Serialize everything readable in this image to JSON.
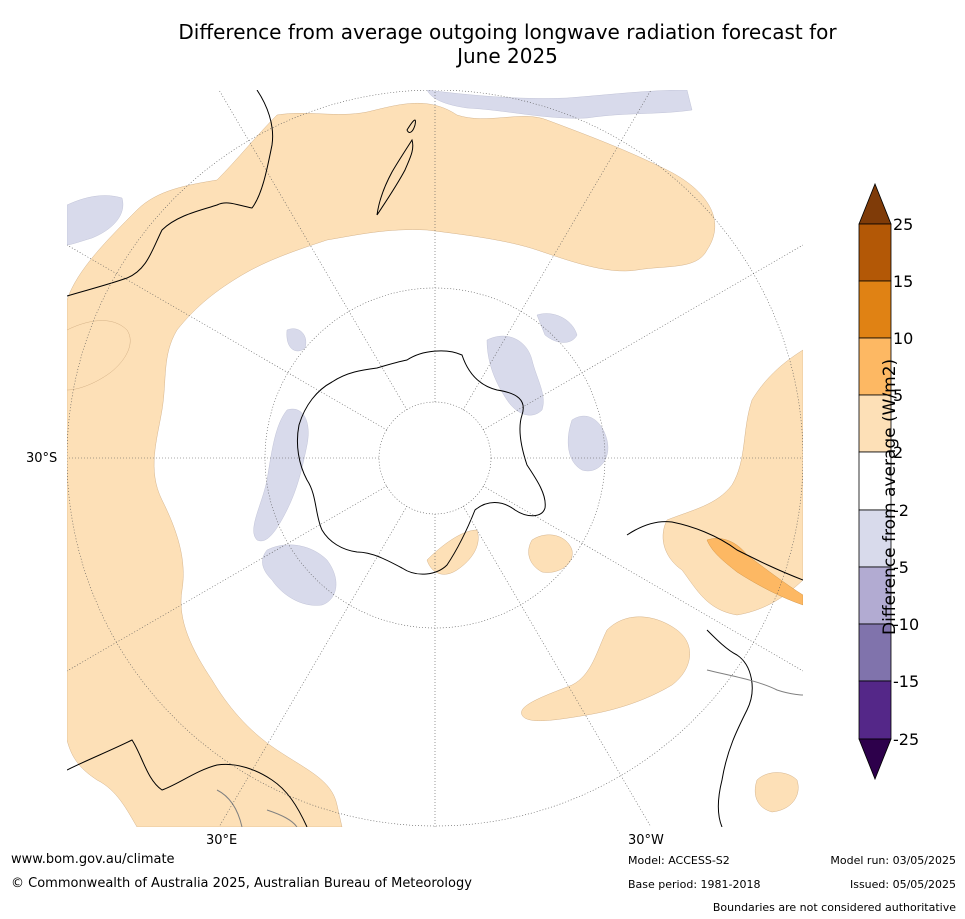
{
  "title_line1": "Difference from average outgoing longwave radiation forecast for",
  "title_line2": "June 2025",
  "map": {
    "projection": "south-polar-stereographic",
    "lat_label": "30°S",
    "lon_labels": [
      "30°E",
      "30°W"
    ],
    "colors": {
      "ocean_neutral": "#ffffff",
      "pos_2_5": "#fde0b7",
      "pos_5_10": "#fdb863",
      "pos_10_15": "#e08214",
      "pos_15_25": "#b35806",
      "pos_gt25": "#7f3b08",
      "neg_2_5": "#d8daeb",
      "neg_5_10": "#b2abd2",
      "neg_10_15": "#8073ac",
      "neg_15_25": "#542788",
      "neg_lt25": "#2d004b",
      "coast": "#000000",
      "boundary": "#808080",
      "grid": "#555555"
    }
  },
  "colorbar": {
    "title": "Difference from average (W/m2)",
    "ticks": [
      "25",
      "15",
      "10",
      "5",
      "2",
      "-2",
      "-5",
      "-10",
      "-15",
      "-25"
    ]
  },
  "footer": {
    "website": "www.bom.gov.au/climate",
    "copyright": "© Commonwealth of Australia 2025, Australian Bureau of Meteorology",
    "model": "Model: ACCESS-S2",
    "base_period": "Base period: 1981-2018",
    "model_run": "Model run: 03/05/2025",
    "issued": "Issued: 05/05/2025",
    "disclaimer": "Boundaries are not considered authoritative"
  }
}
